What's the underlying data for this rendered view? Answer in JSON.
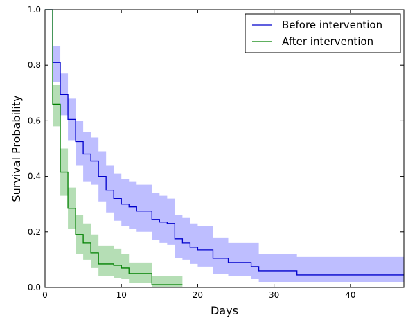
{
  "chart_data": {
    "type": "line",
    "title": "",
    "xlabel": "Days",
    "ylabel": "Survival Probability",
    "xlim": [
      0,
      47
    ],
    "ylim": [
      0.0,
      1.0
    ],
    "x_ticks": [
      0,
      10,
      20,
      30,
      40
    ],
    "x_tick_labels": [
      "0",
      "10",
      "20",
      "30",
      "40"
    ],
    "y_ticks": [
      0.0,
      0.2,
      0.4,
      0.6,
      0.8,
      1.0
    ],
    "y_tick_labels": [
      "0.0",
      "0.2",
      "0.4",
      "0.6",
      "0.8",
      "1.0"
    ],
    "grid": false,
    "legend_position": "top-right",
    "step": true,
    "series": [
      {
        "name": "Before intervention",
        "color": "#0000cc",
        "band_color": "#b3b3ff",
        "x": [
          0,
          1,
          2,
          3,
          4,
          5,
          6,
          7,
          8,
          9,
          10,
          11,
          12,
          13,
          14,
          15,
          16,
          17,
          18,
          19,
          20,
          22,
          24,
          27,
          28,
          33,
          47
        ],
        "y": [
          1.0,
          0.81,
          0.695,
          0.605,
          0.525,
          0.48,
          0.455,
          0.4,
          0.35,
          0.32,
          0.3,
          0.29,
          0.275,
          0.275,
          0.245,
          0.235,
          0.23,
          0.175,
          0.16,
          0.145,
          0.135,
          0.105,
          0.09,
          0.075,
          0.06,
          0.045,
          0.045
        ],
        "lower": [
          1.0,
          0.74,
          0.62,
          0.53,
          0.44,
          0.38,
          0.37,
          0.31,
          0.27,
          0.24,
          0.22,
          0.21,
          0.2,
          0.2,
          0.17,
          0.16,
          0.155,
          0.105,
          0.1,
          0.085,
          0.075,
          0.05,
          0.04,
          0.03,
          0.02,
          0.02,
          0.02
        ],
        "upper": [
          1.0,
          0.87,
          0.77,
          0.68,
          0.6,
          0.56,
          0.54,
          0.49,
          0.44,
          0.41,
          0.39,
          0.38,
          0.37,
          0.37,
          0.34,
          0.33,
          0.32,
          0.26,
          0.25,
          0.23,
          0.22,
          0.18,
          0.16,
          0.16,
          0.12,
          0.11,
          0.11
        ]
      },
      {
        "name": "After intervention",
        "color": "#008000",
        "band_color": "#a8d8a8",
        "x": [
          0,
          1,
          2,
          3,
          4,
          5,
          6,
          7,
          9,
          10,
          11,
          12,
          14,
          18
        ],
        "y": [
          1.0,
          0.66,
          0.415,
          0.285,
          0.19,
          0.16,
          0.125,
          0.085,
          0.08,
          0.07,
          0.05,
          0.05,
          0.01,
          0.01
        ],
        "lower": [
          1.0,
          0.58,
          0.33,
          0.21,
          0.12,
          0.1,
          0.07,
          0.04,
          0.035,
          0.03,
          0.015,
          0.015,
          0.0,
          0.0
        ],
        "upper": [
          1.0,
          0.73,
          0.5,
          0.36,
          0.26,
          0.23,
          0.19,
          0.15,
          0.14,
          0.12,
          0.09,
          0.09,
          0.04,
          0.04
        ]
      }
    ]
  }
}
